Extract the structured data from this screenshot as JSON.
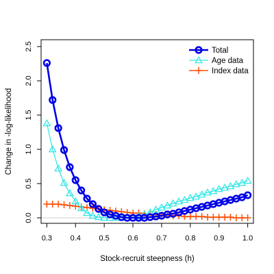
{
  "chart_data": {
    "type": "line",
    "title": "",
    "xlabel": "Stock-recruit steepness (h)",
    "ylabel": "Change in -log-likelihood",
    "xlim": [
      0.28,
      1.02
    ],
    "ylim": [
      -0.08,
      2.6
    ],
    "x_ticks": [
      "0.3",
      "0.4",
      "0.5",
      "0.6",
      "0.7",
      "0.8",
      "0.9",
      "1.0"
    ],
    "y_ticks": [
      "0.0",
      "0.5",
      "1.0",
      "1.5",
      "2.0",
      "2.5"
    ],
    "grid": false,
    "reference_line": 0,
    "legend_position": "top-right",
    "x": [
      0.3,
      0.32,
      0.34,
      0.36,
      0.38,
      0.4,
      0.42,
      0.44,
      0.46,
      0.48,
      0.5,
      0.52,
      0.54,
      0.56,
      0.58,
      0.6,
      0.62,
      0.64,
      0.66,
      0.68,
      0.7,
      0.72,
      0.74,
      0.76,
      0.78,
      0.8,
      0.82,
      0.84,
      0.86,
      0.88,
      0.9,
      0.92,
      0.94,
      0.96,
      0.98,
      1.0
    ],
    "series": [
      {
        "name": "Total",
        "color": "#0000e6",
        "marker": "circle",
        "values": [
          2.26,
          1.72,
          1.31,
          0.99,
          0.74,
          0.55,
          0.4,
          0.28,
          0.2,
          0.13,
          0.08,
          0.05,
          0.03,
          0.01,
          0.0,
          0.0,
          0.0,
          0.0,
          0.01,
          0.02,
          0.03,
          0.05,
          0.06,
          0.08,
          0.1,
          0.12,
          0.14,
          0.16,
          0.18,
          0.2,
          0.22,
          0.24,
          0.26,
          0.28,
          0.3,
          0.33
        ]
      },
      {
        "name": "Age data",
        "color": "#33e6e6",
        "marker": "triangle",
        "values": [
          1.38,
          1.0,
          0.72,
          0.51,
          0.36,
          0.24,
          0.14,
          0.07,
          0.03,
          0.01,
          0.0,
          0.0,
          0.0,
          0.0,
          0.0,
          0.0,
          0.02,
          0.05,
          0.08,
          0.12,
          0.15,
          0.18,
          0.21,
          0.24,
          0.26,
          0.29,
          0.31,
          0.34,
          0.37,
          0.39,
          0.42,
          0.44,
          0.46,
          0.49,
          0.51,
          0.54
        ]
      },
      {
        "name": "Index data",
        "color": "#ff4d00",
        "marker": "plus",
        "values": [
          0.2,
          0.2,
          0.2,
          0.19,
          0.18,
          0.17,
          0.16,
          0.15,
          0.14,
          0.13,
          0.12,
          0.11,
          0.1,
          0.09,
          0.08,
          0.07,
          0.07,
          0.06,
          0.05,
          0.05,
          0.04,
          0.04,
          0.03,
          0.03,
          0.02,
          0.02,
          0.02,
          0.02,
          0.01,
          0.01,
          0.01,
          0.01,
          0.01,
          0.0,
          0.0,
          0.0
        ]
      }
    ]
  }
}
